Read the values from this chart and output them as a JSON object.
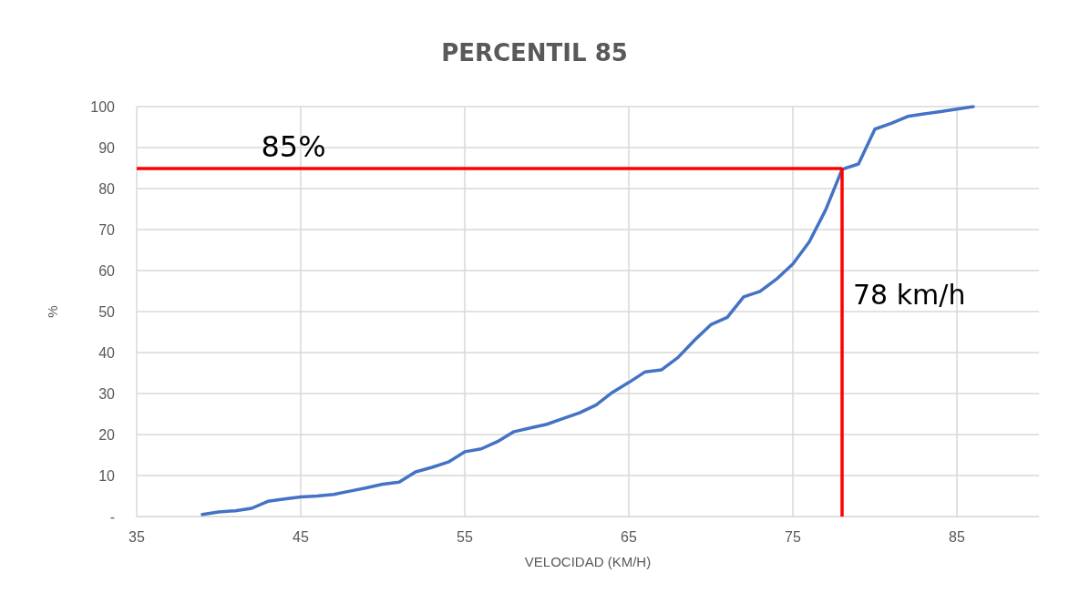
{
  "chart_data": {
    "type": "line",
    "title": "PERCENTIL 85",
    "xlabel": "VELOCIDAD (KM/H)",
    "ylabel": "%",
    "x": [
      39,
      40,
      41,
      42,
      43,
      44,
      45,
      46,
      47,
      48,
      49,
      50,
      51,
      52,
      53,
      54,
      55,
      56,
      57,
      58,
      59,
      60,
      61,
      62,
      63,
      64,
      65,
      66,
      67,
      68,
      69,
      70,
      71,
      72,
      73,
      74,
      75,
      76,
      77,
      78,
      79,
      80,
      81,
      82,
      83,
      84,
      85,
      86
    ],
    "series": [
      {
        "color": "#4472c4",
        "values": [
          0.5,
          1.1,
          1.4,
          2,
          3.7,
          4.3,
          4.8,
          5,
          5.4,
          6.2,
          7,
          7.9,
          8.4,
          10.9,
          12,
          13.3,
          15.8,
          16.5,
          18.3,
          20.7,
          21.6,
          22.5,
          23.9,
          25.3,
          27.2,
          30.3,
          32.7,
          35.3,
          35.8,
          38.8,
          43,
          46.8,
          48.6,
          53.6,
          54.9,
          57.9,
          61.6,
          67,
          74.8,
          84.7,
          86,
          94.5,
          95.9,
          97.6,
          98.2,
          98.8,
          99.4,
          100
        ]
      }
    ],
    "xlim": [
      35,
      90
    ],
    "xticks": [
      35,
      45,
      55,
      65,
      75,
      85
    ],
    "ylim": [
      0,
      100
    ],
    "yticks": [
      {
        "value": 0,
        "label": "-"
      },
      10,
      20,
      30,
      40,
      50,
      60,
      70,
      80,
      90,
      100
    ],
    "grid": true,
    "marker": "none",
    "line_style": "solid",
    "ref_lines": [
      {
        "axis": "y",
        "value": 85,
        "label": "85%",
        "color": "#ff0000"
      },
      {
        "axis": "x",
        "value": 78,
        "label": "78 km/h",
        "color": "#ff0000"
      }
    ]
  }
}
